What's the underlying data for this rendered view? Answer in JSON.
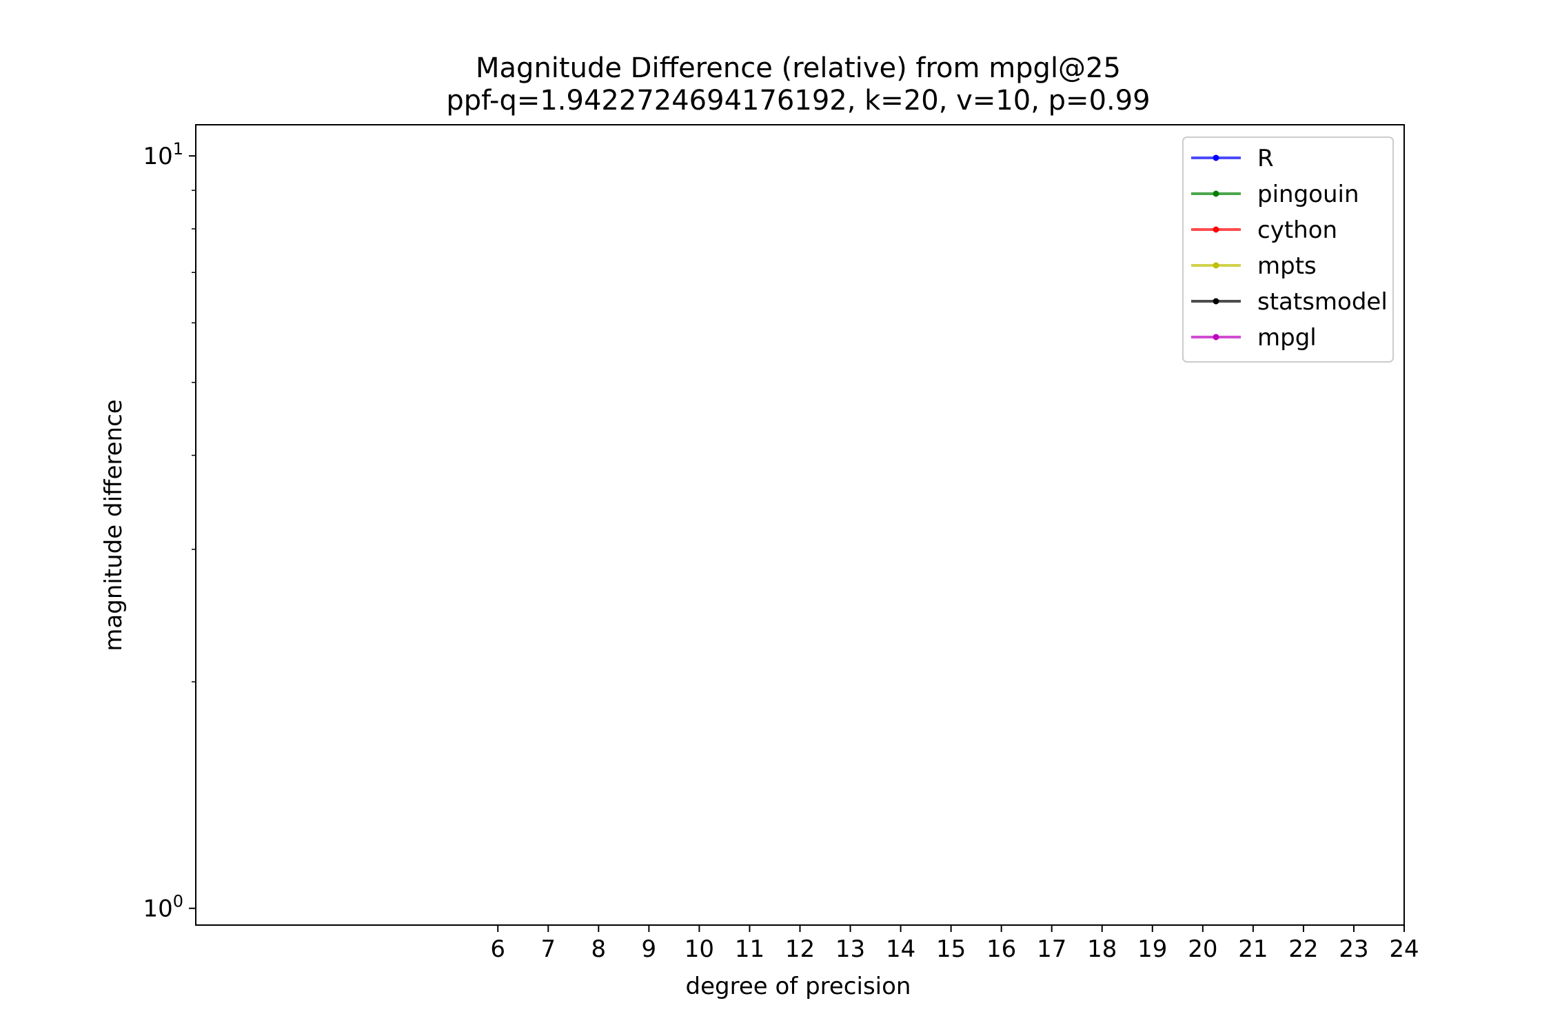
{
  "chart_data": {
    "type": "line",
    "title": "Magnitude Difference (relative) from mpgl@25",
    "subtitle": "ppf-q=1.9422724694176192, k=20, v=10, p=0.99",
    "xlabel": "degree of precision",
    "ylabel": "magnitude difference",
    "y_scale": "log",
    "xlim": [
      0,
      24
    ],
    "ylim": [
      0.95,
      11
    ],
    "x_ticks": [
      6,
      7,
      8,
      9,
      10,
      11,
      12,
      13,
      14,
      15,
      16,
      17,
      18,
      19,
      20,
      21,
      22,
      23,
      24
    ],
    "y_major_ticks": [
      {
        "value": 1,
        "base": "10",
        "exp": "0"
      },
      {
        "value": 10,
        "base": "10",
        "exp": "1"
      }
    ],
    "y_minor_ticks": [
      2,
      3,
      4,
      5,
      6,
      7,
      8,
      9
    ],
    "grid": false,
    "legend_position": "top-right",
    "series": [
      {
        "name": "R",
        "color": "#0000ff",
        "values": []
      },
      {
        "name": "pingouin",
        "color": "#008000",
        "values": []
      },
      {
        "name": "cython",
        "color": "#ff0000",
        "values": []
      },
      {
        "name": "mpts",
        "color": "#bfbf00",
        "values": []
      },
      {
        "name": "statsmodel",
        "color": "#000000",
        "values": []
      },
      {
        "name": "mpgl",
        "color": "#bf00bf",
        "values": []
      }
    ]
  }
}
